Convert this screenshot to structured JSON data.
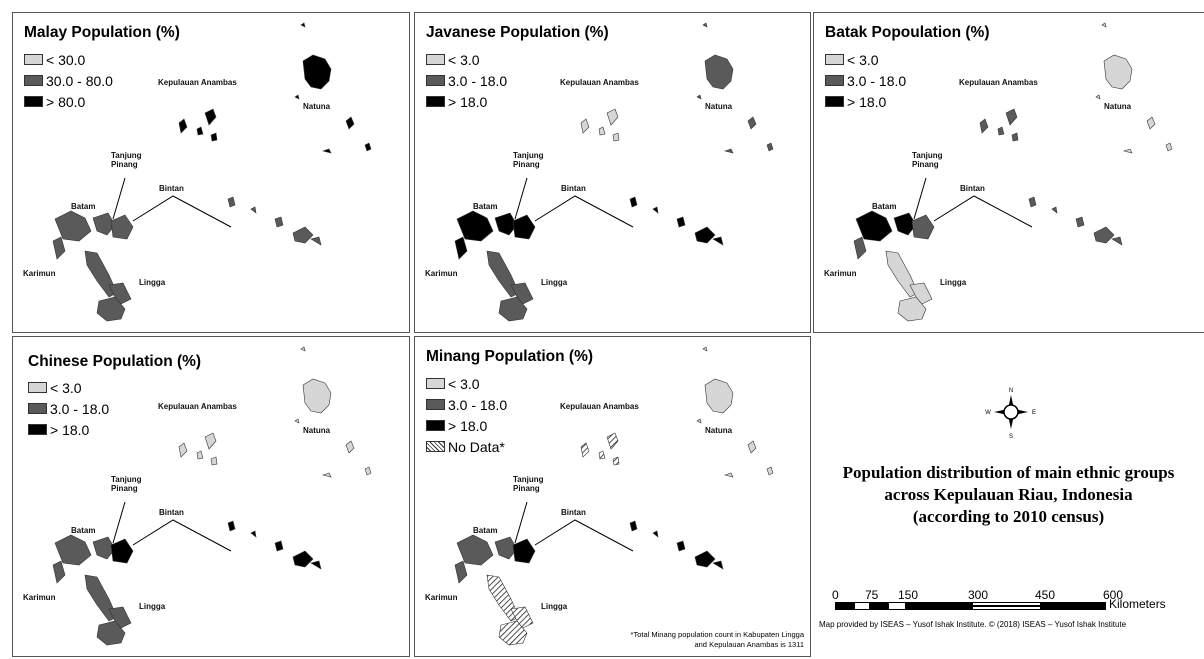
{
  "panels": [
    {
      "title": "Malay Population (%)",
      "legend": [
        "< 30.0",
        "30.0 - 80.0",
        "> 80.0"
      ]
    },
    {
      "title": "Javanese Population (%)",
      "legend": [
        "< 3.0",
        "3.0 - 18.0",
        "> 18.0"
      ]
    },
    {
      "title": "Batak Popoulation (%)",
      "legend": [
        "< 3.0",
        "3.0 - 18.0",
        "> 18.0"
      ]
    },
    {
      "title": "Chinese Population (%)",
      "legend": [
        "< 3.0",
        "3.0 - 18.0",
        "> 18.0"
      ]
    },
    {
      "title": "Minang Population (%)",
      "legend": [
        "< 3.0",
        "3.0 - 18.0",
        "> 18.0",
        "No Data*"
      ],
      "footnote": [
        "*Total Minang population count in Kabupaten Lingga",
        "and Kepulauan Anambas is 1311"
      ]
    }
  ],
  "place_labels": {
    "anambas": "Kepulauan Anambas",
    "natuna": "Natuna",
    "tanjung_pinang": "Tanjung",
    "tanjung_pinang2": "Pinang",
    "bintan": "Bintan",
    "batam": "Batam",
    "karimun": "Karimun",
    "lingga": "Lingga"
  },
  "compass": {
    "n": "N",
    "e": "E",
    "s": "S",
    "w": "W"
  },
  "main_title": [
    "Population distribution of main ethnic groups",
    "across Kepulauan Riau, Indonesia",
    "(according to 2010 census)"
  ],
  "scale": {
    "ticks": [
      "0",
      "75",
      "150",
      "300",
      "450",
      "600"
    ],
    "unit": "Kilometers"
  },
  "credit": "Map provided by ISEAS – Yusof Ishak Institute. © (2018) ISEAS – Yusof Ishak Institute",
  "colors": {
    "light": "#d6d6d6",
    "mid": "#5a5a5a",
    "dark": "#000000"
  },
  "fills": {
    "malay": {
      "natuna": "dark",
      "anambas": "dark",
      "batam": "mid",
      "bintan": "mid",
      "karimun": "mid",
      "lingga": "mid",
      "south": "mid"
    },
    "javanese": {
      "natuna": "mid",
      "anambas": "light",
      "batam": "dark",
      "bintan": "dark",
      "karimun": "dark",
      "lingga": "mid",
      "south": "mid"
    },
    "batak": {
      "natuna": "light",
      "anambas": "mid",
      "batam": "dark",
      "bintan": "mid",
      "karimun": "mid",
      "lingga": "light",
      "south": "light"
    },
    "chinese": {
      "natuna": "light",
      "anambas": "light",
      "batam": "mid",
      "bintan": "dark",
      "karimun": "mid",
      "lingga": "mid",
      "south": "mid"
    },
    "minang": {
      "natuna": "light",
      "anambas": "hatch",
      "batam": "mid",
      "bintan": "dark",
      "karimun": "mid",
      "lingga": "hatch",
      "south": "hatch"
    }
  }
}
